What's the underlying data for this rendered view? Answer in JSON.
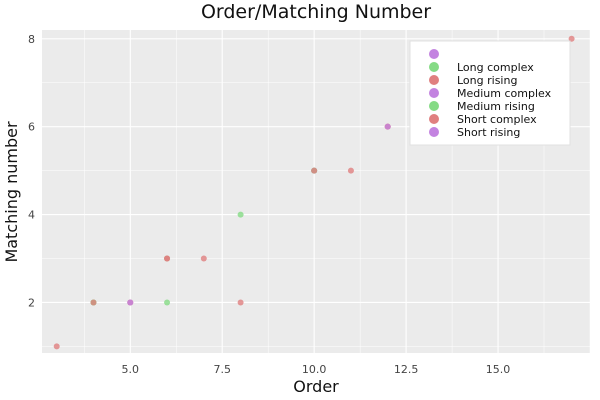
{
  "chart_data": {
    "type": "scatter",
    "title": "Order/Matching Number",
    "xlabel": "Order",
    "ylabel": "Matching number",
    "xlim": [
      2.6,
      17.5
    ],
    "ylim": [
      0.85,
      8.2
    ],
    "xticks": [
      5.0,
      7.5,
      10.0,
      12.5,
      15.0
    ],
    "xtick_labels": [
      "5.0",
      "7.5",
      "10.0",
      "12.5",
      "15.0"
    ],
    "yticks": [
      2,
      4,
      6,
      8
    ],
    "ytick_labels": [
      "2",
      "4",
      "6",
      "8"
    ],
    "grid": true,
    "legend_position": "top-right",
    "series": [
      {
        "name": "",
        "color": "#c383e0",
        "x": [],
        "y": []
      },
      {
        "name": "Long complex",
        "color": "#85db85",
        "x": [
          4,
          6,
          10
        ],
        "y": [
          2,
          3,
          5
        ]
      },
      {
        "name": "Long rising",
        "color": "#e08080",
        "x": [
          3,
          6,
          7,
          8,
          11,
          12,
          17
        ],
        "y": [
          1,
          3,
          3,
          2,
          5,
          6,
          8
        ]
      },
      {
        "name": "Medium complex",
        "color": "#c383e0",
        "x": [
          5,
          10
        ],
        "y": [
          2,
          5
        ]
      },
      {
        "name": "Medium rising",
        "color": "#85db85",
        "x": [
          4,
          6,
          8,
          10
        ],
        "y": [
          2,
          2,
          4,
          5
        ]
      },
      {
        "name": "Short complex",
        "color": "#e08080",
        "x": [
          4,
          5,
          6,
          10,
          12
        ],
        "y": [
          2,
          2,
          3,
          5,
          6
        ]
      },
      {
        "name": "Short rising",
        "color": "#c383e0",
        "x": [
          5,
          12
        ],
        "y": [
          2,
          6
        ]
      }
    ]
  }
}
